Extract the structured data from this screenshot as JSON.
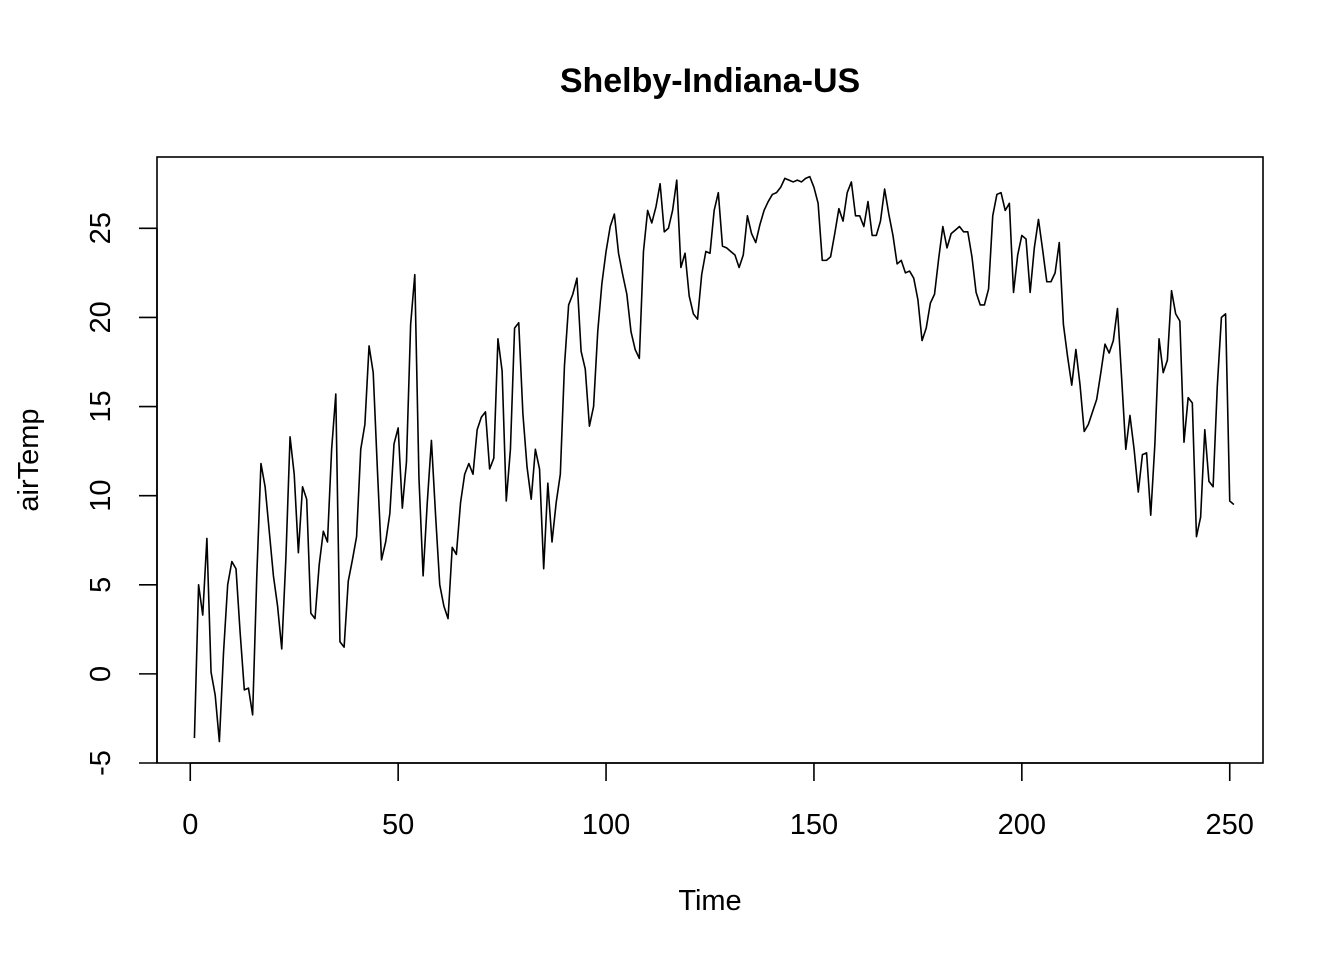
{
  "chart_data": {
    "type": "line",
    "title": "Shelby-Indiana-US",
    "xlabel": "Time",
    "ylabel": "airTemp",
    "xlim": [
      -8,
      258
    ],
    "ylim": [
      -5,
      29
    ],
    "x_ticks": [
      0,
      50,
      100,
      150,
      200,
      250
    ],
    "y_ticks": [
      -5,
      0,
      5,
      10,
      15,
      20,
      25
    ],
    "grid": false,
    "legend": "none",
    "line_color": "#000000",
    "series": [
      {
        "x_start": 1,
        "x_step": 1,
        "values": [
          -3.6,
          5.0,
          3.3,
          7.6,
          0.1,
          -1.2,
          -3.8,
          1.2,
          5.0,
          6.3,
          5.9,
          2.3,
          -0.9,
          -0.8,
          -2.3,
          5.5,
          11.8,
          10.5,
          8.0,
          5.5,
          3.8,
          1.4,
          6.5,
          13.3,
          11.2,
          6.8,
          10.5,
          9.8,
          3.4,
          3.1,
          6.1,
          8.0,
          7.4,
          12.6,
          15.7,
          1.8,
          1.5,
          5.2,
          6.4,
          7.7,
          12.6,
          14.0,
          18.4,
          16.9,
          11.5,
          6.4,
          7.4,
          9.0,
          12.9,
          13.8,
          9.3,
          11.9,
          19.6,
          22.4,
          11.0,
          5.5,
          9.6,
          13.1,
          8.9,
          5.0,
          3.8,
          3.1,
          7.1,
          6.7,
          9.6,
          11.2,
          11.8,
          11.2,
          13.7,
          14.4,
          14.7,
          11.5,
          12.1,
          18.8,
          17.0,
          9.7,
          12.6,
          19.4,
          19.7,
          14.6,
          11.6,
          9.8,
          12.6,
          11.5,
          5.9,
          10.7,
          7.4,
          9.6,
          11.2,
          17.3,
          20.7,
          21.3,
          22.2,
          18.1,
          17.1,
          13.9,
          15.0,
          19.2,
          21.9,
          23.7,
          25.1,
          25.8,
          23.6,
          22.4,
          21.3,
          19.2,
          18.2,
          17.7,
          23.7,
          26.0,
          25.3,
          26.2,
          27.5,
          24.8,
          25.0,
          26.0,
          27.7,
          22.8,
          23.6,
          21.2,
          20.2,
          19.9,
          22.4,
          23.7,
          23.6,
          26.0,
          27.0,
          24.0,
          23.9,
          23.7,
          23.5,
          22.8,
          23.5,
          25.7,
          24.7,
          24.2,
          25.2,
          26.0,
          26.5,
          26.9,
          27.0,
          27.3,
          27.8,
          27.7,
          27.6,
          27.7,
          27.6,
          27.8,
          27.9,
          27.3,
          26.4,
          23.2,
          23.2,
          23.4,
          24.7,
          26.1,
          25.4,
          27.0,
          27.6,
          25.7,
          25.7,
          25.1,
          26.5,
          24.6,
          24.6,
          25.4,
          27.2,
          25.8,
          24.6,
          23.0,
          23.2,
          22.5,
          22.6,
          22.2,
          21.0,
          18.7,
          19.4,
          20.8,
          21.3,
          23.3,
          25.1,
          23.9,
          24.7,
          24.9,
          25.1,
          24.8,
          24.8,
          23.4,
          21.4,
          20.7,
          20.7,
          21.6,
          25.7,
          26.9,
          27.0,
          26.0,
          26.4,
          21.4,
          23.5,
          24.6,
          24.4,
          21.4,
          23.9,
          25.5,
          23.8,
          22.0,
          22.0,
          22.5,
          24.2,
          19.6,
          17.8,
          16.2,
          18.2,
          16.2,
          13.6,
          14.0,
          14.7,
          15.4,
          16.9,
          18.5,
          18.0,
          18.7,
          20.5,
          16.6,
          12.6,
          14.5,
          12.6,
          10.2,
          12.3,
          12.4,
          8.9,
          12.9,
          18.8,
          16.9,
          17.6,
          21.5,
          20.2,
          19.8,
          13.0,
          15.5,
          15.2,
          7.7,
          8.8,
          13.7,
          10.8,
          10.5,
          16.1,
          20.0,
          20.2,
          9.7,
          9.5
        ]
      }
    ]
  }
}
